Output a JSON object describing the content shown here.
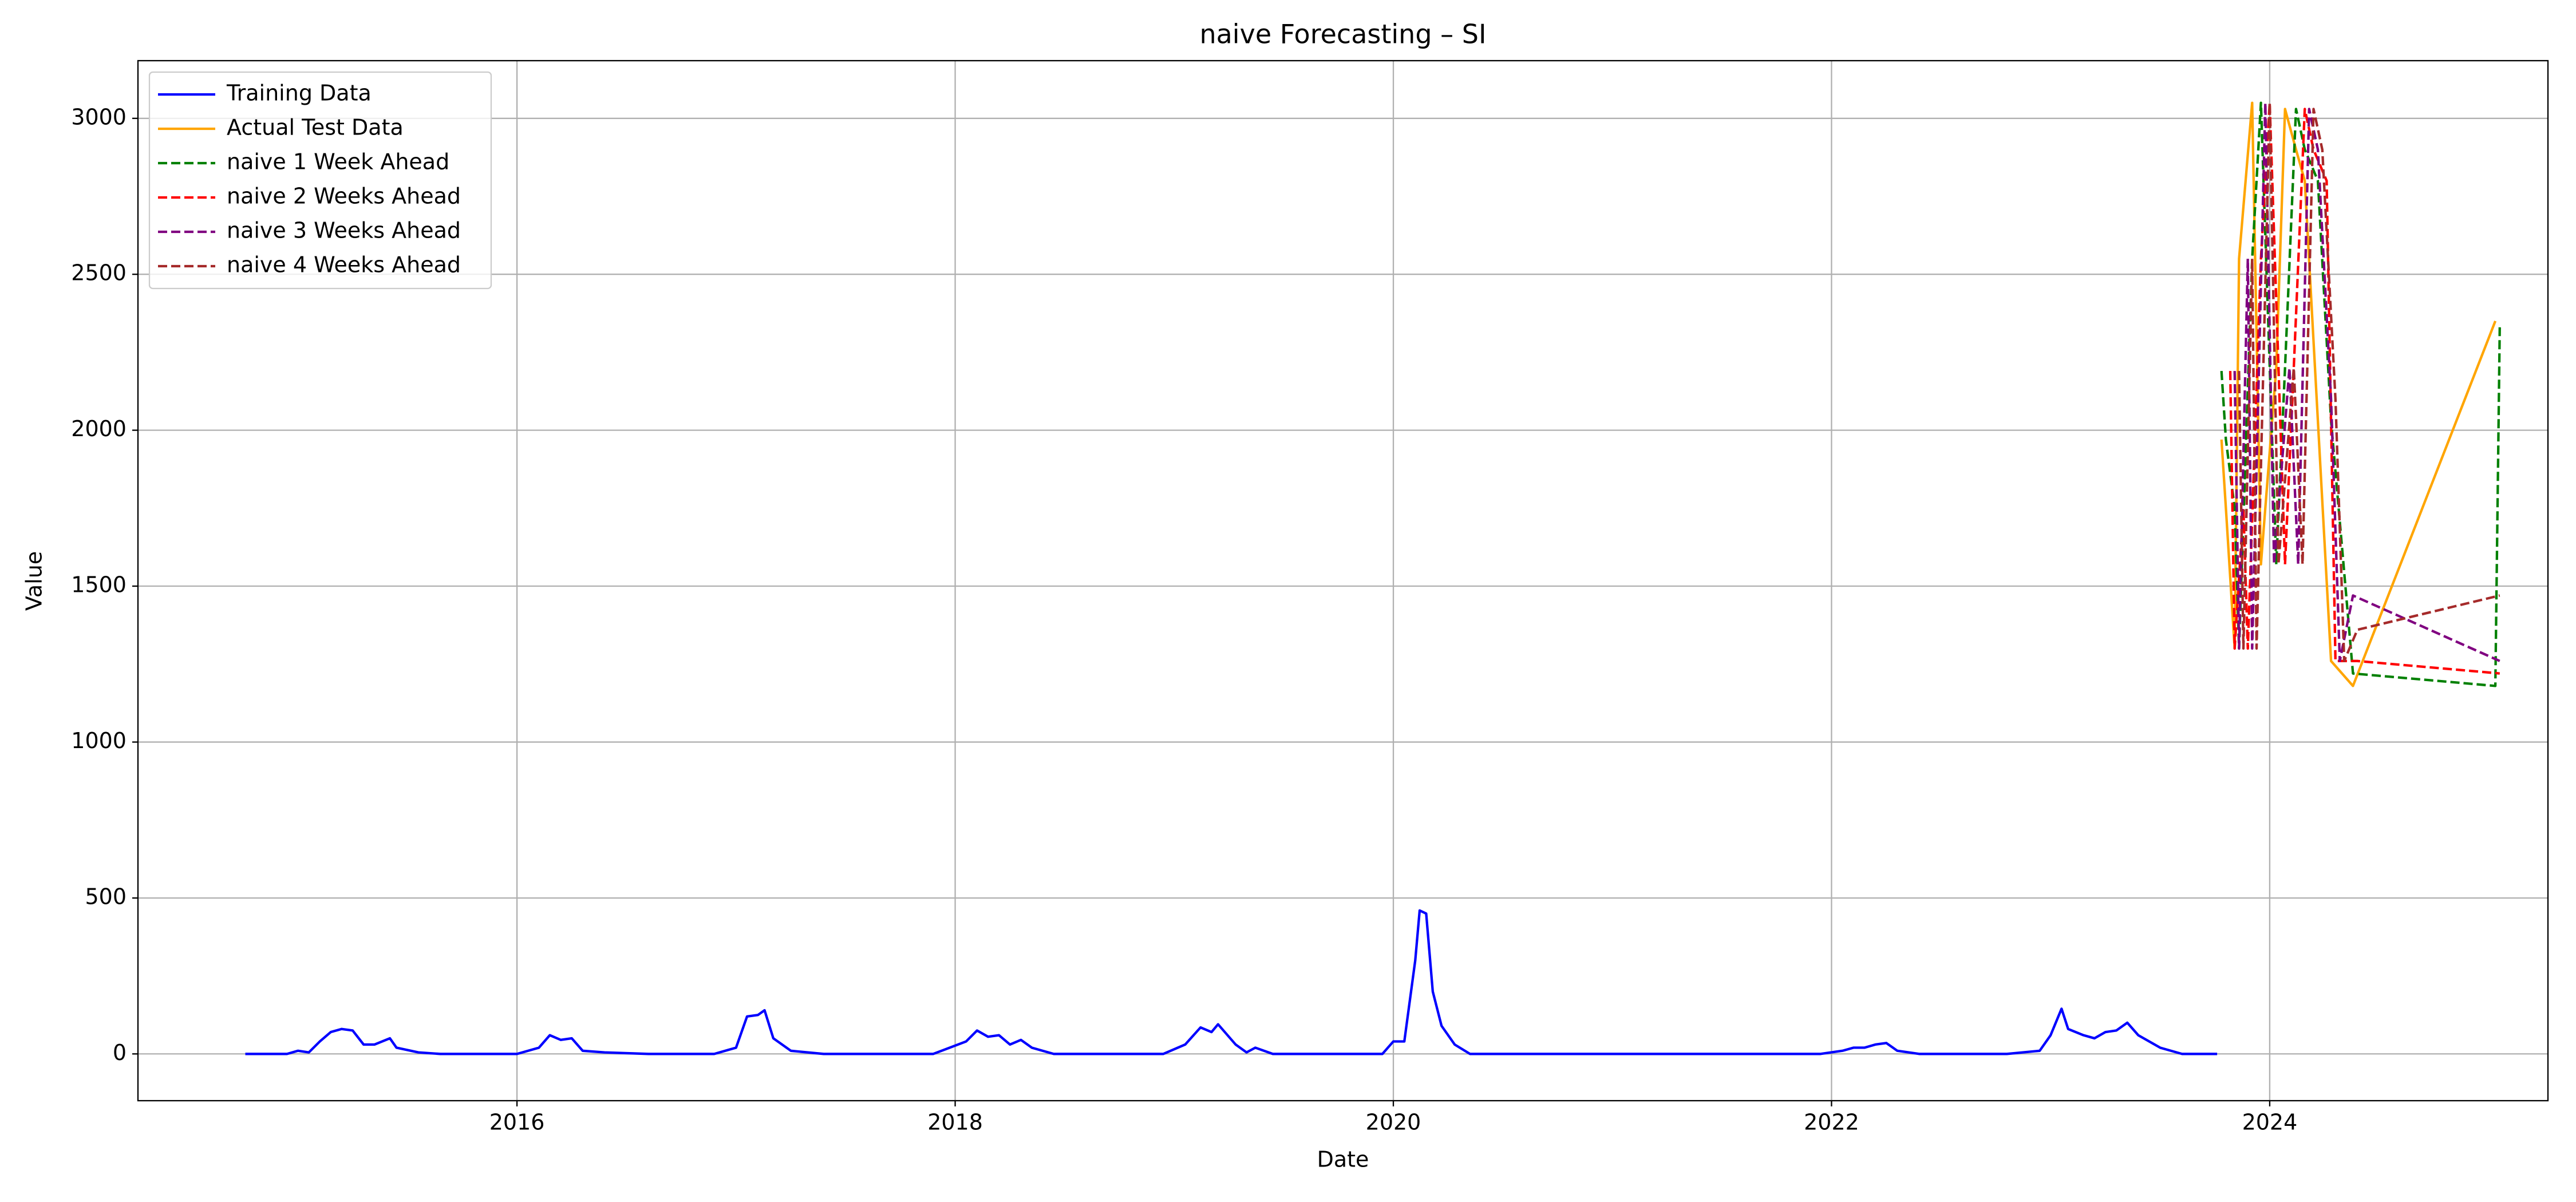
{
  "chart_data": {
    "type": "line",
    "title": "naive Forecasting – SI",
    "x_label": "Date",
    "y_label": "Value",
    "xlim": [
      2014.27,
      2025.27
    ],
    "xticks": [
      2016,
      2018,
      2020,
      2022,
      2024
    ],
    "ylim": [
      -150,
      3185
    ],
    "yticks": [
      0,
      500,
      1000,
      1500,
      2000,
      2500,
      3000
    ],
    "grid": true,
    "legend": "upper left",
    "series": [
      {
        "name": "Training Data",
        "color": "#0000ff",
        "dash": false,
        "x": [
          2014.76,
          2014.95,
          2015.0,
          2015.05,
          2015.1,
          2015.15,
          2015.2,
          2015.25,
          2015.3,
          2015.35,
          2015.42,
          2015.45,
          2015.55,
          2015.65,
          2016.0,
          2016.1,
          2016.15,
          2016.2,
          2016.25,
          2016.3,
          2016.4,
          2016.6,
          2016.9,
          2017.0,
          2017.05,
          2017.1,
          2017.13,
          2017.17,
          2017.25,
          2017.4,
          2017.9,
          2018.05,
          2018.1,
          2018.15,
          2018.2,
          2018.25,
          2018.3,
          2018.35,
          2018.45,
          2018.95,
          2019.05,
          2019.12,
          2019.17,
          2019.2,
          2019.28,
          2019.33,
          2019.37,
          2019.45,
          2019.95,
          2020.0,
          2020.05,
          2020.1,
          2020.12,
          2020.15,
          2020.18,
          2020.22,
          2020.28,
          2020.35,
          2021.95,
          2022.05,
          2022.1,
          2022.15,
          2022.2,
          2022.25,
          2022.3,
          2022.4,
          2022.8,
          2022.95,
          2023.0,
          2023.05,
          2023.08,
          2023.15,
          2023.2,
          2023.25,
          2023.3,
          2023.35,
          2023.4,
          2023.5,
          2023.6,
          2023.76
        ],
        "values": [
          0,
          0,
          10,
          5,
          40,
          70,
          80,
          75,
          30,
          30,
          50,
          20,
          5,
          0,
          0,
          20,
          60,
          45,
          50,
          10,
          5,
          0,
          0,
          20,
          120,
          125,
          140,
          50,
          10,
          0,
          0,
          40,
          75,
          55,
          60,
          30,
          45,
          20,
          0,
          0,
          30,
          85,
          70,
          95,
          30,
          5,
          20,
          0,
          0,
          40,
          40,
          300,
          460,
          450,
          200,
          90,
          30,
          0,
          0,
          10,
          20,
          20,
          30,
          35,
          10,
          0,
          0,
          10,
          60,
          145,
          80,
          60,
          50,
          70,
          75,
          100,
          60,
          20,
          0,
          0
        ]
      },
      {
        "name": "Actual Test Data",
        "color": "#ffa500",
        "dash": false,
        "x": [
          2023.78,
          2023.8,
          2023.84,
          2023.86,
          2023.92,
          2023.96,
          2024.03,
          2024.07,
          2024.12,
          2024.16,
          2024.22,
          2024.28,
          2024.38,
          2025.03
        ],
        "values": [
          1970,
          1750,
          1300,
          2550,
          3050,
          1570,
          2200,
          3030,
          2900,
          2800,
          2030,
          1260,
          1180,
          2350
        ]
      },
      {
        "name": "naive 1 Week Ahead",
        "color": "#008000",
        "dash": true,
        "x": [
          2023.78,
          2023.8,
          2023.84,
          2023.86,
          2023.92,
          2023.96,
          2024.03,
          2024.07,
          2024.12,
          2024.16,
          2024.22,
          2024.28,
          2024.38,
          2025.03,
          2025.05
        ],
        "values": [
          2190,
          1970,
          1750,
          1300,
          2550,
          3050,
          1570,
          2200,
          3030,
          2900,
          2800,
          2030,
          1220,
          1180,
          2330
        ]
      },
      {
        "name": "naive 2 Weeks Ahead",
        "color": "#ff0000",
        "dash": true,
        "x": [
          2023.82,
          2023.84,
          2023.88,
          2023.9,
          2023.96,
          2024.0,
          2024.07,
          2024.11,
          2024.16,
          2024.2,
          2024.26,
          2024.3,
          2024.4,
          2025.05
        ],
        "values": [
          2190,
          1300,
          1750,
          1300,
          2550,
          3050,
          1570,
          2200,
          3030,
          2900,
          2800,
          1260,
          1260,
          1220
        ]
      },
      {
        "name": "naive 3 Weeks Ahead",
        "color": "#800080",
        "dash": true,
        "x": [
          2023.84,
          2023.86,
          2023.9,
          2023.92,
          2023.98,
          2024.02,
          2024.09,
          2024.13,
          2024.18,
          2024.22,
          2024.28,
          2024.32,
          2024.38,
          2025.05
        ],
        "values": [
          2190,
          1300,
          2550,
          1300,
          3050,
          1570,
          2200,
          1570,
          3030,
          2900,
          2100,
          1260,
          1470,
          1260
        ]
      },
      {
        "name": "naive 4 Weeks Ahead",
        "color": "#a52a2a",
        "dash": true,
        "x": [
          2023.86,
          2023.88,
          2023.92,
          2023.94,
          2024.0,
          2024.04,
          2024.11,
          2024.15,
          2024.2,
          2024.24,
          2024.3,
          2024.34,
          2024.4,
          2025.05
        ],
        "values": [
          2190,
          1300,
          2550,
          1300,
          3050,
          1570,
          2200,
          1570,
          3030,
          2900,
          2100,
          1260,
          1360,
          1470
        ]
      }
    ]
  }
}
